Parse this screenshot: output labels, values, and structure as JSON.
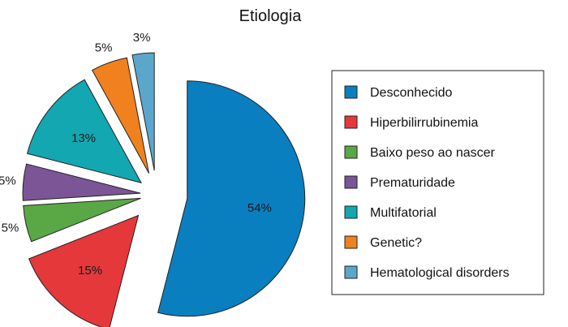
{
  "chart_data": {
    "type": "pie",
    "title": "Etiologia",
    "categories": [
      "Desconhecido",
      "Hiperbilirrubinemia",
      "Baixo peso ao nascer",
      "Prematuridade",
      "Multifatorial",
      "Genetic?",
      "Hematological disorders"
    ],
    "values": [
      54,
      15,
      5,
      5,
      13,
      5,
      3
    ],
    "labels": [
      "54%",
      "15%",
      "5%",
      "5%",
      "13%",
      "5%",
      "3%"
    ],
    "colors": [
      "#0a7fbf",
      "#e5383b",
      "#5aa845",
      "#7b5595",
      "#13a7b2",
      "#f0811e",
      "#5ba7cc"
    ],
    "exploded": true,
    "start_angle_deg": 90,
    "direction": "clockwise",
    "legend_position": "right"
  }
}
